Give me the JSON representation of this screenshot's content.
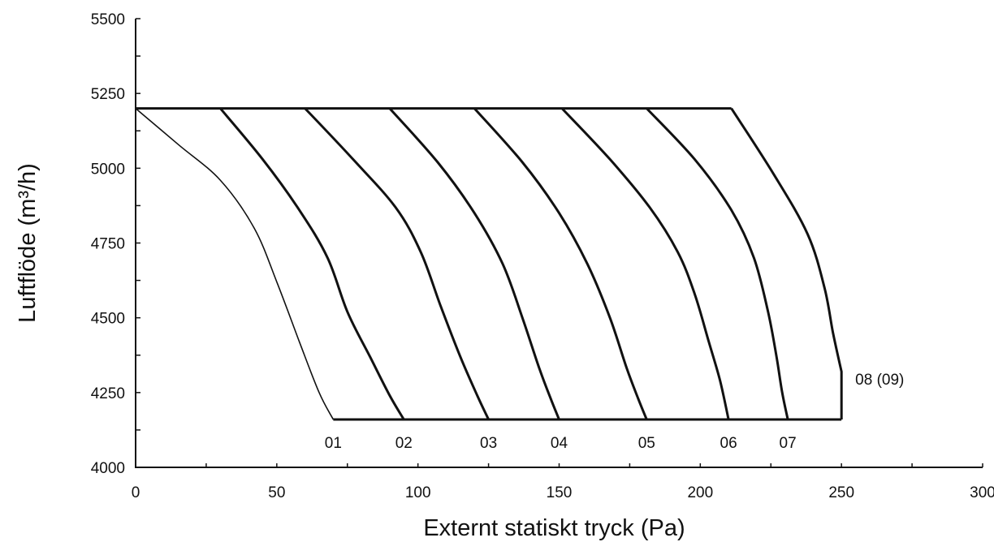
{
  "chart_data": {
    "type": "line",
    "title": "",
    "xlabel": "Externt statiskt tryck (Pa)",
    "ylabel": "Luftflöde (m³/h)",
    "xlim": [
      0,
      300
    ],
    "ylim": [
      4000,
      5500
    ],
    "x_ticks": [
      "0",
      "50",
      "100",
      "150",
      "200",
      "250",
      "300"
    ],
    "y_ticks": [
      "4000",
      "4250",
      "4500",
      "4750",
      "5000",
      "5250",
      "5500"
    ],
    "grid": false,
    "legend": "none",
    "envelope": {
      "top_flow": 5200,
      "bottom_flow": 4160,
      "right_pressure": 250
    },
    "series": [
      {
        "name": "01",
        "points": [
          [
            0,
            5200
          ],
          [
            15,
            5080
          ],
          [
            30,
            4960
          ],
          [
            42,
            4800
          ],
          [
            50,
            4620
          ],
          [
            58,
            4420
          ],
          [
            65,
            4250
          ],
          [
            70,
            4160
          ]
        ]
      },
      {
        "name": "02",
        "points": [
          [
            30,
            5200
          ],
          [
            45,
            5030
          ],
          [
            58,
            4860
          ],
          [
            68,
            4700
          ],
          [
            75,
            4520
          ],
          [
            83,
            4370
          ],
          [
            90,
            4240
          ],
          [
            95,
            4160
          ]
        ]
      },
      {
        "name": "03",
        "points": [
          [
            60,
            5200
          ],
          [
            77,
            5030
          ],
          [
            92,
            4870
          ],
          [
            101,
            4720
          ],
          [
            108,
            4540
          ],
          [
            115,
            4370
          ],
          [
            121,
            4240
          ],
          [
            125,
            4160
          ]
        ]
      },
      {
        "name": "04",
        "points": [
          [
            90,
            5200
          ],
          [
            107,
            5020
          ],
          [
            120,
            4850
          ],
          [
            130,
            4680
          ],
          [
            137,
            4500
          ],
          [
            143,
            4330
          ],
          [
            147,
            4230
          ],
          [
            150,
            4160
          ]
        ]
      },
      {
        "name": "05",
        "points": [
          [
            120,
            5200
          ],
          [
            137,
            5020
          ],
          [
            150,
            4850
          ],
          [
            160,
            4680
          ],
          [
            168,
            4500
          ],
          [
            174,
            4330
          ],
          [
            178,
            4230
          ],
          [
            181,
            4160
          ]
        ]
      },
      {
        "name": "06",
        "points": [
          [
            151,
            5200
          ],
          [
            168,
            5030
          ],
          [
            182,
            4870
          ],
          [
            192,
            4720
          ],
          [
            198,
            4580
          ],
          [
            203,
            4420
          ],
          [
            207,
            4290
          ],
          [
            210,
            4160
          ]
        ]
      },
      {
        "name": "07",
        "points": [
          [
            181,
            5200
          ],
          [
            198,
            5030
          ],
          [
            211,
            4860
          ],
          [
            219,
            4700
          ],
          [
            224,
            4520
          ],
          [
            227,
            4370
          ],
          [
            229,
            4250
          ],
          [
            231,
            4160
          ]
        ]
      },
      {
        "name": "08 (09)",
        "points": [
          [
            211,
            5200
          ],
          [
            226,
            4980
          ],
          [
            238,
            4780
          ],
          [
            244,
            4600
          ],
          [
            247,
            4450
          ],
          [
            250,
            4320
          ],
          [
            250,
            4160
          ]
        ]
      }
    ]
  }
}
